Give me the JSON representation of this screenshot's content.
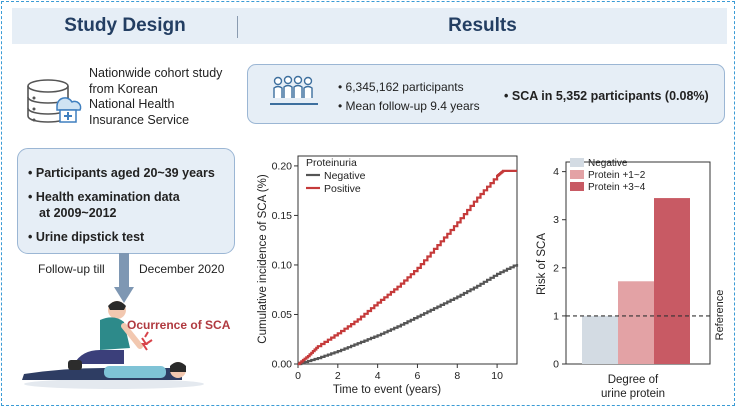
{
  "headers": {
    "left": "Study Design",
    "right": "Results"
  },
  "study_design": {
    "description_lines": [
      "Nationwide cohort study",
      "from Korean",
      "National Health",
      "Insurance Service"
    ],
    "criteria": [
      "Participants aged 20~39 years",
      "Health examination data",
      "at 2009~2012",
      "Urine dipstick test"
    ],
    "follow_up_left": "Follow-up till",
    "follow_up_right": "December 2020",
    "event_label": "Ocurrence of SCA"
  },
  "results": {
    "participants": "6,345,162 participants",
    "follow_up": "Mean follow-up 9.4 years",
    "sca": "SCA in 5,352 participants (0.08%)"
  },
  "chart_data": [
    {
      "type": "line",
      "legend_title": "Proteinuria",
      "xlabel": "Time to event (years)",
      "ylabel": "Cumulative incidence of SCA (%)",
      "xlim": [
        0,
        11
      ],
      "ylim": [
        0,
        0.21
      ],
      "xticks": [
        0,
        2,
        4,
        6,
        8,
        10
      ],
      "yticks": [
        "0.00",
        "0.05",
        "0.10",
        "0.15",
        "0.20"
      ],
      "legend_position": "top-left",
      "series": [
        {
          "name": "Negative",
          "color": "#555555",
          "x": [
            0,
            1,
            2,
            3,
            4,
            5,
            6,
            7,
            8,
            9,
            10,
            11
          ],
          "y": [
            0,
            0.006,
            0.013,
            0.021,
            0.029,
            0.038,
            0.048,
            0.058,
            0.068,
            0.079,
            0.091,
            0.101
          ]
        },
        {
          "name": "Positive",
          "color": "#c53a3a",
          "x": [
            0,
            0.5,
            1,
            2,
            3,
            4,
            5,
            6,
            7,
            8,
            9,
            10,
            10.3,
            11
          ],
          "y": [
            0,
            0.008,
            0.018,
            0.031,
            0.045,
            0.062,
            0.078,
            0.097,
            0.12,
            0.143,
            0.168,
            0.19,
            0.195,
            0.195
          ]
        }
      ]
    },
    {
      "type": "bar",
      "ylabel": "Risk of SCA",
      "xlabel": "Degree of urine protein",
      "ylim": [
        0,
        4.2
      ],
      "yticks": [
        0,
        1,
        2,
        3,
        4
      ],
      "reference_line": 1,
      "reference_label": "Reference",
      "legend_position": "top-left",
      "categories": [
        "Negative",
        "Protein +1~2",
        "Protein +3~4"
      ],
      "values": [
        1.0,
        1.72,
        3.45
      ],
      "colors": [
        "#d3dbe3",
        "#e3a2a5",
        "#c85a64"
      ]
    }
  ]
}
